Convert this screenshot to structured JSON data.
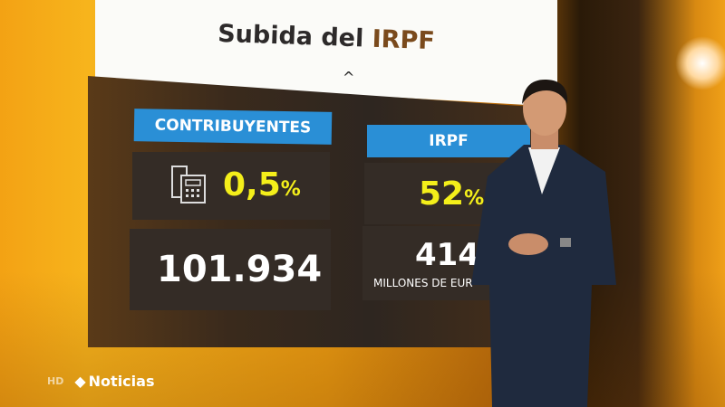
{
  "title": {
    "main": "Subida del",
    "accent": "IRPF"
  },
  "columns": [
    {
      "header": "CONTRIBUYENTES",
      "percent": "0,5",
      "percent_unit": "%",
      "figure": "101.934",
      "icon": "receipt-calculator-icon"
    },
    {
      "header": "IRPF",
      "percent": "52",
      "percent_unit": "%",
      "figure": "414",
      "figure_unit": "MILLONES DE EUR"
    }
  ],
  "broadcast": {
    "hd": "HD",
    "channel": "Noticias"
  },
  "colors": {
    "header_blue": "#2a8fd6",
    "highlight_yellow": "#f4ef1a",
    "background_orange": "#f3a214"
  }
}
